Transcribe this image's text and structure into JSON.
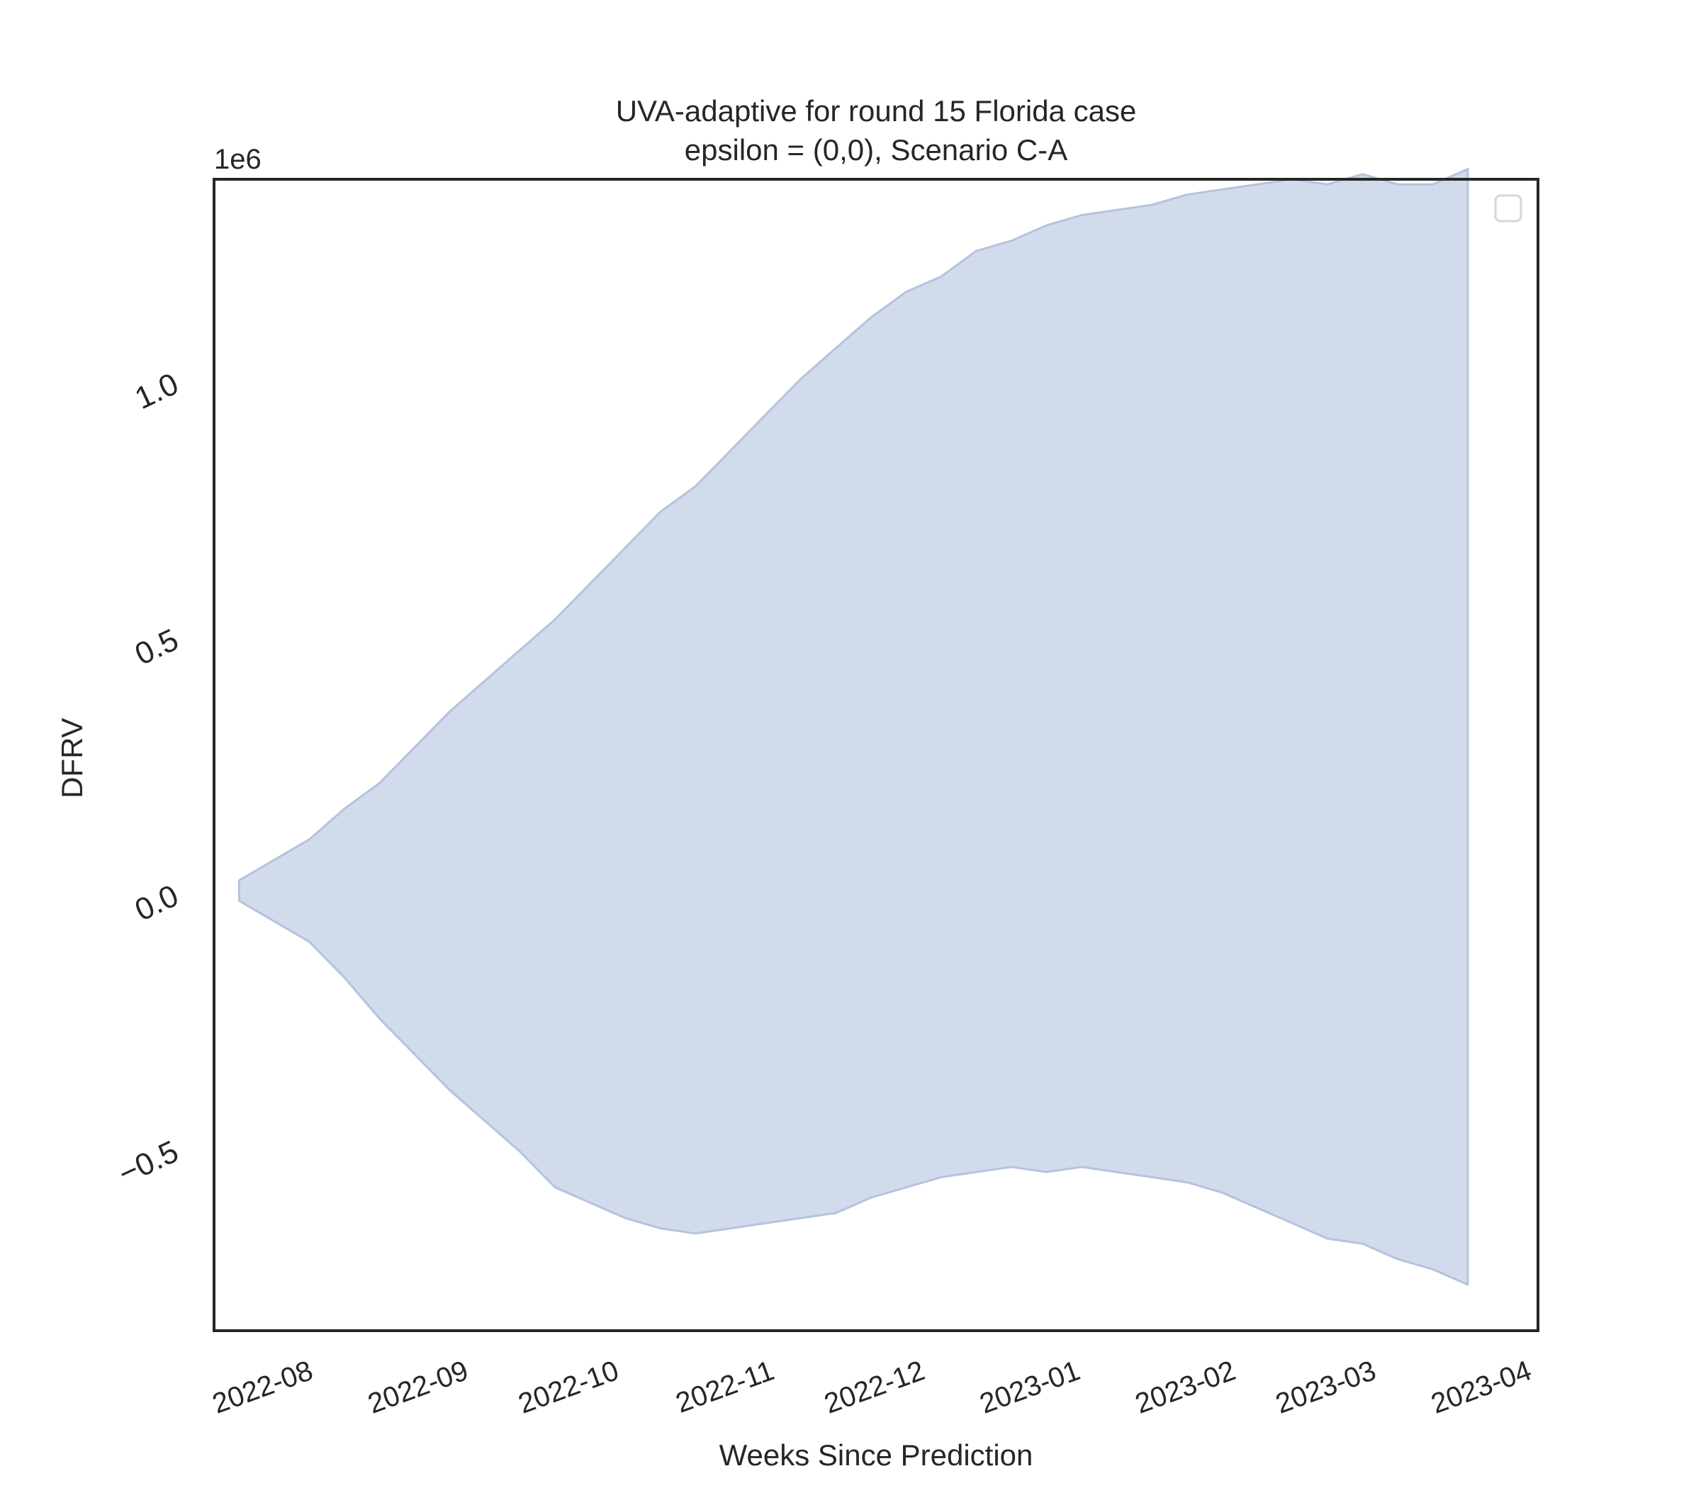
{
  "chart_data": {
    "type": "area",
    "title": [
      "UVA-adaptive for round 15 Florida case",
      "epsilon = (0,0), Scenario C-A"
    ],
    "xlabel": "Weeks Since Prediction",
    "ylabel": "DFRV",
    "y_offset_label": "1e6",
    "xlim": [
      "2022-07-19",
      "2023-04-09"
    ],
    "ylim": [
      -0.85,
      1.4
    ],
    "y_scale_factor": 1000000,
    "x_ticks": [
      "2022-08",
      "2022-09",
      "2022-10",
      "2022-11",
      "2022-12",
      "2023-01",
      "2023-02",
      "2023-03",
      "2023-04"
    ],
    "y_ticks": [
      -0.5,
      0.0,
      0.5,
      1.0
    ],
    "y_tick_labels": [
      "−0.5",
      "0.0",
      "0.5",
      "1.0"
    ],
    "grid": false,
    "legend": {
      "placement": "top-right",
      "entries": []
    },
    "fill_color": "#b4c3de",
    "fill_opacity": 0.6,
    "edge_color": "#b4c3de",
    "band": {
      "x": [
        "2022-07-24",
        "2022-07-31",
        "2022-08-07",
        "2022-08-14",
        "2022-08-21",
        "2022-08-28",
        "2022-09-04",
        "2022-09-11",
        "2022-09-18",
        "2022-09-25",
        "2022-10-02",
        "2022-10-09",
        "2022-10-16",
        "2022-10-23",
        "2022-10-30",
        "2022-11-06",
        "2022-11-13",
        "2022-11-20",
        "2022-11-27",
        "2022-12-04",
        "2022-12-11",
        "2022-12-18",
        "2022-12-25",
        "2023-01-01",
        "2023-01-08",
        "2023-01-15",
        "2023-01-22",
        "2023-01-29",
        "2023-02-05",
        "2023-02-12",
        "2023-02-19",
        "2023-02-26",
        "2023-03-05",
        "2023-03-12",
        "2023-03-19",
        "2023-03-26"
      ],
      "upper": [
        0.03,
        0.07,
        0.11,
        0.17,
        0.22,
        0.29,
        0.36,
        0.42,
        0.48,
        0.54,
        0.61,
        0.68,
        0.75,
        0.8,
        0.87,
        0.94,
        1.01,
        1.07,
        1.13,
        1.18,
        1.21,
        1.26,
        1.28,
        1.31,
        1.33,
        1.34,
        1.35,
        1.37,
        1.38,
        1.39,
        1.4,
        1.39,
        1.41,
        1.39,
        1.39,
        1.42
      ],
      "lower": [
        -0.01,
        -0.05,
        -0.09,
        -0.16,
        -0.24,
        -0.31,
        -0.38,
        -0.44,
        -0.5,
        -0.57,
        -0.6,
        -0.63,
        -0.65,
        -0.66,
        -0.65,
        -0.64,
        -0.63,
        -0.62,
        -0.59,
        -0.57,
        -0.55,
        -0.54,
        -0.53,
        -0.54,
        -0.53,
        -0.54,
        -0.55,
        -0.56,
        -0.58,
        -0.61,
        -0.64,
        -0.67,
        -0.68,
        -0.71,
        -0.73,
        -0.76
      ]
    }
  }
}
